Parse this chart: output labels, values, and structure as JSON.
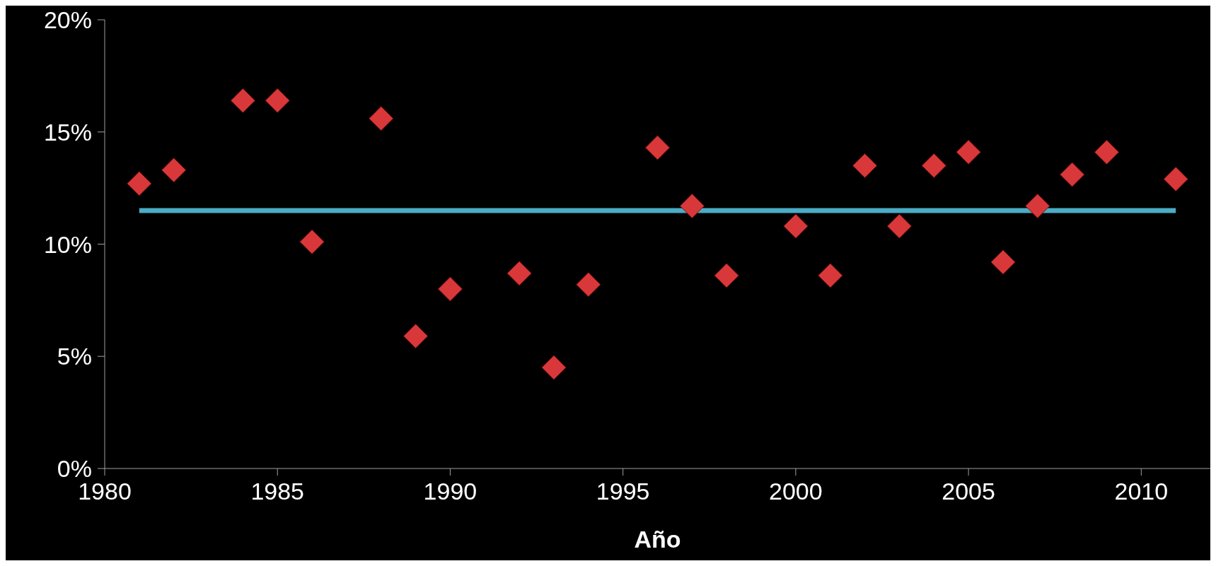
{
  "chart_data": {
    "type": "scatter",
    "xlabel": "Año",
    "xlim": [
      1980,
      2012
    ],
    "xticks": [
      1980,
      1985,
      1990,
      1995,
      2000,
      2005,
      2010
    ],
    "ylim": [
      0,
      20
    ],
    "yticks": [
      {
        "value": 0,
        "label": "0%"
      },
      {
        "value": 5,
        "label": "5%"
      },
      {
        "value": 10,
        "label": "10%"
      },
      {
        "value": 15,
        "label": "15%"
      },
      {
        "value": 20,
        "label": "20%"
      }
    ],
    "grid": false,
    "marker": "diamond",
    "series": [
      {
        "color": "#d9383a",
        "x": [
          1981,
          1982,
          1984,
          1985,
          1986,
          1988,
          1989,
          1990,
          1992,
          1993,
          1994,
          1996,
          1997,
          1998,
          2000,
          2001,
          2002,
          2003,
          2004,
          2005,
          2006,
          2007,
          2008,
          2009,
          2011
        ],
        "values": [
          12.7,
          13.3,
          16.4,
          16.4,
          10.1,
          15.6,
          5.9,
          8.0,
          8.7,
          4.5,
          8.2,
          14.3,
          11.7,
          8.6,
          10.8,
          8.6,
          13.5,
          10.8,
          13.5,
          14.1,
          9.2,
          11.7,
          13.1,
          14.1,
          12.9
        ]
      },
      {
        "type": "line",
        "color": "#4bacc6",
        "marker": "none",
        "x": [
          1981,
          2011
        ],
        "values": [
          11.5,
          11.5
        ]
      }
    ]
  }
}
